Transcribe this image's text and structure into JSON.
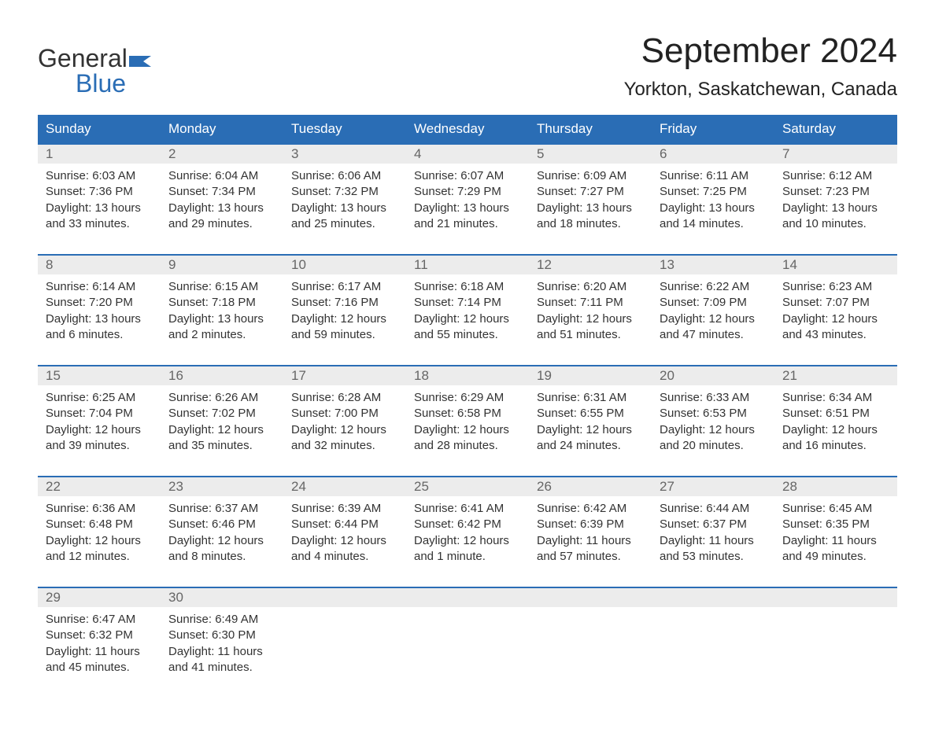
{
  "logo": {
    "word1": "General",
    "word2": "Blue"
  },
  "title": "September 2024",
  "location": "Yorkton, Saskatchewan, Canada",
  "colors": {
    "header_bg": "#2a6db5",
    "header_text": "#ffffff",
    "daynum_bg": "#ececec",
    "daynum_text": "#666666",
    "body_text": "#333333",
    "week_border": "#2a6db5",
    "logo_blue": "#2a6db5"
  },
  "day_labels": [
    "Sunday",
    "Monday",
    "Tuesday",
    "Wednesday",
    "Thursday",
    "Friday",
    "Saturday"
  ],
  "weeks": [
    [
      {
        "num": "1",
        "sunrise": "Sunrise: 6:03 AM",
        "sunset": "Sunset: 7:36 PM",
        "daylight1": "Daylight: 13 hours",
        "daylight2": "and 33 minutes."
      },
      {
        "num": "2",
        "sunrise": "Sunrise: 6:04 AM",
        "sunset": "Sunset: 7:34 PM",
        "daylight1": "Daylight: 13 hours",
        "daylight2": "and 29 minutes."
      },
      {
        "num": "3",
        "sunrise": "Sunrise: 6:06 AM",
        "sunset": "Sunset: 7:32 PM",
        "daylight1": "Daylight: 13 hours",
        "daylight2": "and 25 minutes."
      },
      {
        "num": "4",
        "sunrise": "Sunrise: 6:07 AM",
        "sunset": "Sunset: 7:29 PM",
        "daylight1": "Daylight: 13 hours",
        "daylight2": "and 21 minutes."
      },
      {
        "num": "5",
        "sunrise": "Sunrise: 6:09 AM",
        "sunset": "Sunset: 7:27 PM",
        "daylight1": "Daylight: 13 hours",
        "daylight2": "and 18 minutes."
      },
      {
        "num": "6",
        "sunrise": "Sunrise: 6:11 AM",
        "sunset": "Sunset: 7:25 PM",
        "daylight1": "Daylight: 13 hours",
        "daylight2": "and 14 minutes."
      },
      {
        "num": "7",
        "sunrise": "Sunrise: 6:12 AM",
        "sunset": "Sunset: 7:23 PM",
        "daylight1": "Daylight: 13 hours",
        "daylight2": "and 10 minutes."
      }
    ],
    [
      {
        "num": "8",
        "sunrise": "Sunrise: 6:14 AM",
        "sunset": "Sunset: 7:20 PM",
        "daylight1": "Daylight: 13 hours",
        "daylight2": "and 6 minutes."
      },
      {
        "num": "9",
        "sunrise": "Sunrise: 6:15 AM",
        "sunset": "Sunset: 7:18 PM",
        "daylight1": "Daylight: 13 hours",
        "daylight2": "and 2 minutes."
      },
      {
        "num": "10",
        "sunrise": "Sunrise: 6:17 AM",
        "sunset": "Sunset: 7:16 PM",
        "daylight1": "Daylight: 12 hours",
        "daylight2": "and 59 minutes."
      },
      {
        "num": "11",
        "sunrise": "Sunrise: 6:18 AM",
        "sunset": "Sunset: 7:14 PM",
        "daylight1": "Daylight: 12 hours",
        "daylight2": "and 55 minutes."
      },
      {
        "num": "12",
        "sunrise": "Sunrise: 6:20 AM",
        "sunset": "Sunset: 7:11 PM",
        "daylight1": "Daylight: 12 hours",
        "daylight2": "and 51 minutes."
      },
      {
        "num": "13",
        "sunrise": "Sunrise: 6:22 AM",
        "sunset": "Sunset: 7:09 PM",
        "daylight1": "Daylight: 12 hours",
        "daylight2": "and 47 minutes."
      },
      {
        "num": "14",
        "sunrise": "Sunrise: 6:23 AM",
        "sunset": "Sunset: 7:07 PM",
        "daylight1": "Daylight: 12 hours",
        "daylight2": "and 43 minutes."
      }
    ],
    [
      {
        "num": "15",
        "sunrise": "Sunrise: 6:25 AM",
        "sunset": "Sunset: 7:04 PM",
        "daylight1": "Daylight: 12 hours",
        "daylight2": "and 39 minutes."
      },
      {
        "num": "16",
        "sunrise": "Sunrise: 6:26 AM",
        "sunset": "Sunset: 7:02 PM",
        "daylight1": "Daylight: 12 hours",
        "daylight2": "and 35 minutes."
      },
      {
        "num": "17",
        "sunrise": "Sunrise: 6:28 AM",
        "sunset": "Sunset: 7:00 PM",
        "daylight1": "Daylight: 12 hours",
        "daylight2": "and 32 minutes."
      },
      {
        "num": "18",
        "sunrise": "Sunrise: 6:29 AM",
        "sunset": "Sunset: 6:58 PM",
        "daylight1": "Daylight: 12 hours",
        "daylight2": "and 28 minutes."
      },
      {
        "num": "19",
        "sunrise": "Sunrise: 6:31 AM",
        "sunset": "Sunset: 6:55 PM",
        "daylight1": "Daylight: 12 hours",
        "daylight2": "and 24 minutes."
      },
      {
        "num": "20",
        "sunrise": "Sunrise: 6:33 AM",
        "sunset": "Sunset: 6:53 PM",
        "daylight1": "Daylight: 12 hours",
        "daylight2": "and 20 minutes."
      },
      {
        "num": "21",
        "sunrise": "Sunrise: 6:34 AM",
        "sunset": "Sunset: 6:51 PM",
        "daylight1": "Daylight: 12 hours",
        "daylight2": "and 16 minutes."
      }
    ],
    [
      {
        "num": "22",
        "sunrise": "Sunrise: 6:36 AM",
        "sunset": "Sunset: 6:48 PM",
        "daylight1": "Daylight: 12 hours",
        "daylight2": "and 12 minutes."
      },
      {
        "num": "23",
        "sunrise": "Sunrise: 6:37 AM",
        "sunset": "Sunset: 6:46 PM",
        "daylight1": "Daylight: 12 hours",
        "daylight2": "and 8 minutes."
      },
      {
        "num": "24",
        "sunrise": "Sunrise: 6:39 AM",
        "sunset": "Sunset: 6:44 PM",
        "daylight1": "Daylight: 12 hours",
        "daylight2": "and 4 minutes."
      },
      {
        "num": "25",
        "sunrise": "Sunrise: 6:41 AM",
        "sunset": "Sunset: 6:42 PM",
        "daylight1": "Daylight: 12 hours",
        "daylight2": "and 1 minute."
      },
      {
        "num": "26",
        "sunrise": "Sunrise: 6:42 AM",
        "sunset": "Sunset: 6:39 PM",
        "daylight1": "Daylight: 11 hours",
        "daylight2": "and 57 minutes."
      },
      {
        "num": "27",
        "sunrise": "Sunrise: 6:44 AM",
        "sunset": "Sunset: 6:37 PM",
        "daylight1": "Daylight: 11 hours",
        "daylight2": "and 53 minutes."
      },
      {
        "num": "28",
        "sunrise": "Sunrise: 6:45 AM",
        "sunset": "Sunset: 6:35 PM",
        "daylight1": "Daylight: 11 hours",
        "daylight2": "and 49 minutes."
      }
    ],
    [
      {
        "num": "29",
        "sunrise": "Sunrise: 6:47 AM",
        "sunset": "Sunset: 6:32 PM",
        "daylight1": "Daylight: 11 hours",
        "daylight2": "and 45 minutes."
      },
      {
        "num": "30",
        "sunrise": "Sunrise: 6:49 AM",
        "sunset": "Sunset: 6:30 PM",
        "daylight1": "Daylight: 11 hours",
        "daylight2": "and 41 minutes."
      },
      null,
      null,
      null,
      null,
      null
    ]
  ]
}
